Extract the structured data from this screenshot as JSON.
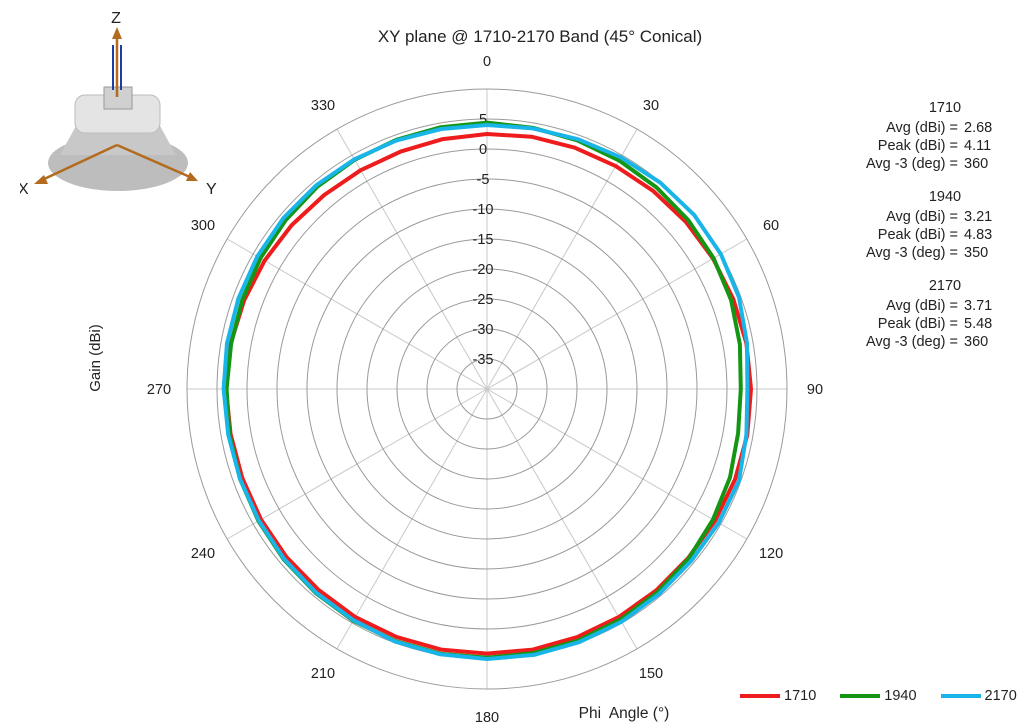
{
  "chart_data": {
    "type": "polar-line",
    "title": "XY plane @ 1710-2170 Band (45° Conical)",
    "xlabel": "Phi  Angle (°)",
    "ylabel": "Gain (dBi)",
    "radial_range": [
      -40,
      10
    ],
    "radial_ticks": [
      5,
      0,
      -5,
      -10,
      -15,
      -20,
      -25,
      -30,
      -35
    ],
    "angle_ticks": [
      0,
      30,
      60,
      90,
      120,
      150,
      180,
      210,
      240,
      270,
      300,
      330
    ],
    "angle_direction": "clockwise from top",
    "grid": true,
    "legend_position": "bottom-right",
    "angles": [
      0,
      10,
      20,
      30,
      40,
      50,
      60,
      70,
      80,
      90,
      100,
      110,
      120,
      130,
      140,
      150,
      160,
      170,
      180,
      190,
      200,
      210,
      220,
      230,
      240,
      250,
      260,
      270,
      280,
      290,
      300,
      310,
      320,
      330,
      340,
      350,
      360
    ],
    "series": [
      {
        "name": "1710",
        "color": "#ee1c1c",
        "values": [
          2.5,
          2.7,
          2.8,
          2.9,
          3.1,
          3.3,
          3.5,
          3.7,
          3.9,
          4.0,
          4.05,
          4.0,
          3.9,
          3.8,
          3.85,
          3.9,
          4.0,
          4.1,
          4.1,
          4.1,
          4.0,
          3.9,
          3.7,
          3.6,
          3.5,
          3.4,
          3.4,
          3.5,
          3.4,
          3.1,
          2.8,
          2.5,
          2.2,
          2.1,
          2.1,
          2.3,
          2.5
        ]
      },
      {
        "name": "1940",
        "color": "#149614",
        "values": [
          4.4,
          4.2,
          4.1,
          4.0,
          3.9,
          3.8,
          3.6,
          3.3,
          2.8,
          2.3,
          2.5,
          3.1,
          3.5,
          3.9,
          4.2,
          4.4,
          4.6,
          4.7,
          4.8,
          4.8,
          4.7,
          4.6,
          4.4,
          4.2,
          4.0,
          3.8,
          3.6,
          3.4,
          3.3,
          3.4,
          3.6,
          3.8,
          4.0,
          4.1,
          4.2,
          4.3,
          4.4
        ]
      },
      {
        "name": "2170",
        "color": "#19b4e8",
        "values": [
          4.0,
          4.1,
          4.3,
          4.6,
          4.9,
          5.1,
          5.0,
          4.7,
          4.0,
          3.4,
          3.9,
          4.7,
          4.6,
          4.5,
          4.6,
          4.8,
          4.9,
          5.0,
          5.0,
          4.9,
          4.8,
          4.5,
          4.3,
          4.1,
          3.9,
          3.8,
          3.8,
          3.9,
          4.0,
          4.1,
          4.2,
          4.3,
          4.3,
          4.2,
          4.1,
          4.0,
          4.0
        ]
      }
    ]
  },
  "stats": [
    {
      "title": "1710",
      "rows": [
        {
          "label": "Avg  (dBi) =",
          "value": "2.68"
        },
        {
          "label": "Peak (dBi) =",
          "value": "4.11"
        },
        {
          "label": "Avg -3 (deg) =",
          "value": "360"
        }
      ]
    },
    {
      "title": "1940",
      "rows": [
        {
          "label": "Avg  (dBi) =",
          "value": "3.21"
        },
        {
          "label": "Peak (dBi) =",
          "value": "4.83"
        },
        {
          "label": "Avg -3 (deg) =",
          "value": "350"
        }
      ]
    },
    {
      "title": "2170",
      "rows": [
        {
          "label": "Avg  (dBi) =",
          "value": "3.71"
        },
        {
          "label": "Peak (dBi) =",
          "value": "5.48"
        },
        {
          "label": "Avg -3 (deg) =",
          "value": "360"
        }
      ]
    }
  ],
  "axes_icon": {
    "x_label": "X",
    "y_label": "Y",
    "z_label": "Z",
    "icon": "antenna-3d-icon"
  }
}
